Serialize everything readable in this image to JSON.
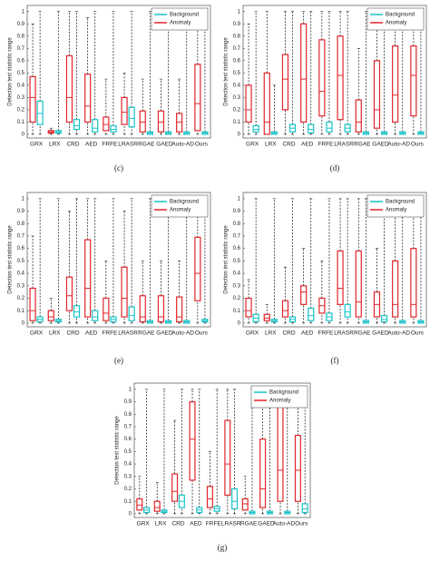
{
  "chart_data": [
    {
      "type": "box",
      "label": "(c)",
      "y_label": "Detection test statistic range",
      "categories": [
        "GRX",
        "LRX",
        "CRD",
        "AED",
        "FRFE",
        "LRASR",
        "RGAE",
        "GAED",
        "Auto-AD",
        "Ours"
      ],
      "ylim": [
        -0.03,
        1.05
      ],
      "yticks": [
        0,
        0.1,
        0.2,
        0.3,
        0.4,
        0.5,
        0.6,
        0.7,
        0.8,
        0.9,
        1
      ],
      "legend": "upper right",
      "series": [
        {
          "name": "Background",
          "color": "#17c3c8",
          "boxes": [
            [
              0,
              0.08,
              0.17,
              0.27,
              1
            ],
            [
              0,
              0.01,
              0.02,
              0.03,
              1
            ],
            [
              0,
              0.04,
              0.07,
              0.12,
              1
            ],
            [
              0,
              0.02,
              0.05,
              0.12,
              1
            ],
            [
              0,
              0.02,
              0.04,
              0.07,
              1
            ],
            [
              0,
              0.06,
              0.13,
              0.22,
              1
            ],
            [
              0,
              0,
              0.01,
              0.02,
              1
            ],
            [
              0,
              0,
              0.01,
              0.02,
              1
            ],
            [
              0,
              0,
              0.01,
              0.02,
              1
            ],
            [
              0,
              0,
              0.01,
              0.02,
              1
            ]
          ]
        },
        {
          "name": "Anomaly",
          "color": "#e0262b",
          "boxes": [
            [
              0,
              0.1,
              0.3,
              0.47,
              0.9
            ],
            [
              0,
              0.01,
              0.02,
              0.03,
              0.05
            ],
            [
              0,
              0.1,
              0.3,
              0.64,
              1
            ],
            [
              0,
              0.1,
              0.23,
              0.49,
              0.95
            ],
            [
              0,
              0.03,
              0.08,
              0.14,
              0.45
            ],
            [
              0,
              0.08,
              0.18,
              0.3,
              0.5
            ],
            [
              0,
              0.02,
              0.1,
              0.19,
              0.45
            ],
            [
              0,
              0.02,
              0.1,
              0.19,
              0.45
            ],
            [
              0,
              0.02,
              0.1,
              0.17,
              0.45
            ],
            [
              0,
              0.03,
              0.25,
              0.57,
              1
            ]
          ]
        }
      ]
    },
    {
      "type": "box",
      "label": "(d)",
      "y_label": "Detection test statistic range",
      "categories": [
        "GRX",
        "LRX",
        "CRD",
        "AED",
        "FRFE",
        "LRASR",
        "RGAE",
        "GAED",
        "Auto-AD",
        "Ours"
      ],
      "ylim": [
        -0.03,
        1.05
      ],
      "yticks": [
        0,
        0.1,
        0.2,
        0.3,
        0.4,
        0.5,
        0.6,
        0.7,
        0.8,
        0.9,
        1
      ],
      "legend": "upper right",
      "series": [
        {
          "name": "Background",
          "color": "#17c3c8",
          "boxes": [
            [
              0,
              0.02,
              0.04,
              0.07,
              1
            ],
            [
              0,
              0,
              0.01,
              0.02,
              0.4
            ],
            [
              0,
              0.02,
              0.05,
              0.08,
              1
            ],
            [
              0,
              0.01,
              0.04,
              0.08,
              1
            ],
            [
              0,
              0.02,
              0.05,
              0.1,
              1
            ],
            [
              0,
              0.02,
              0.05,
              0.08,
              1
            ],
            [
              0,
              0,
              0.01,
              0.02,
              1
            ],
            [
              0,
              0,
              0.01,
              0.02,
              1
            ],
            [
              0,
              0,
              0.01,
              0.02,
              1
            ],
            [
              0,
              0,
              0.01,
              0.02,
              1
            ]
          ]
        },
        {
          "name": "Anomaly",
          "color": "#e0262b",
          "boxes": [
            [
              0,
              0.1,
              0.2,
              0.4,
              0.9
            ],
            [
              0,
              0,
              0.1,
              0.5,
              1
            ],
            [
              0,
              0.2,
              0.45,
              0.65,
              1
            ],
            [
              0,
              0.1,
              0.45,
              0.9,
              1
            ],
            [
              0,
              0.15,
              0.35,
              0.77,
              1
            ],
            [
              0,
              0.12,
              0.48,
              0.8,
              1
            ],
            [
              0,
              0.02,
              0.1,
              0.28,
              0.7
            ],
            [
              0,
              0.05,
              0.2,
              0.6,
              1
            ],
            [
              0,
              0.1,
              0.32,
              0.72,
              1
            ],
            [
              0,
              0.15,
              0.48,
              0.72,
              1
            ]
          ]
        }
      ]
    },
    {
      "type": "box",
      "label": "(e)",
      "y_label": "Detection test statistic range",
      "categories": [
        "GRX",
        "LRX",
        "CRD",
        "AED",
        "FRFE",
        "LRASR",
        "RGAE",
        "GAED",
        "Auto-AD",
        "Ours"
      ],
      "ylim": [
        -0.03,
        1.05
      ],
      "yticks": [
        0,
        0.1,
        0.2,
        0.3,
        0.4,
        0.5,
        0.6,
        0.7,
        0.8,
        0.9,
        1
      ],
      "legend": "upper right",
      "series": [
        {
          "name": "Background",
          "color": "#17c3c8",
          "boxes": [
            [
              0,
              0.01,
              0.03,
              0.05,
              1
            ],
            [
              0,
              0.01,
              0.02,
              0.03,
              1
            ],
            [
              0,
              0.05,
              0.09,
              0.14,
              1
            ],
            [
              0,
              0.02,
              0.05,
              0.1,
              1
            ],
            [
              0,
              0.01,
              0.03,
              0.05,
              1
            ],
            [
              0,
              0.02,
              0.06,
              0.13,
              1
            ],
            [
              0,
              0,
              0.01,
              0.02,
              1
            ],
            [
              0,
              0,
              0.01,
              0.02,
              1
            ],
            [
              0,
              0,
              0.01,
              0.02,
              1
            ],
            [
              0,
              0.01,
              0.02,
              0.03,
              1
            ]
          ]
        },
        {
          "name": "Anomaly",
          "color": "#e0262b",
          "boxes": [
            [
              0,
              0.02,
              0.1,
              0.28,
              0.7
            ],
            [
              0,
              0.02,
              0.05,
              0.1,
              0.2
            ],
            [
              0,
              0.1,
              0.22,
              0.37,
              0.9
            ],
            [
              0,
              0.05,
              0.28,
              0.67,
              1
            ],
            [
              0,
              0.02,
              0.08,
              0.2,
              0.5
            ],
            [
              0,
              0.05,
              0.2,
              0.45,
              0.9
            ],
            [
              0,
              0.01,
              0.05,
              0.22,
              0.5
            ],
            [
              0,
              0.01,
              0.05,
              0.22,
              0.5
            ],
            [
              0,
              0.01,
              0.05,
              0.21,
              0.5
            ],
            [
              0,
              0.18,
              0.4,
              0.69,
              1
            ]
          ]
        }
      ]
    },
    {
      "type": "box",
      "label": "(f)",
      "y_label": "Detection test statistic range",
      "categories": [
        "GRX",
        "LRX",
        "CRD",
        "AED",
        "FRFE",
        "LRASR",
        "RGAE",
        "GAED",
        "Auto-AD",
        "Ours"
      ],
      "ylim": [
        -0.03,
        1.05
      ],
      "yticks": [
        0,
        0.1,
        0.2,
        0.3,
        0.4,
        0.5,
        0.6,
        0.7,
        0.8,
        0.9,
        1
      ],
      "legend": "upper right",
      "series": [
        {
          "name": "Background",
          "color": "#17c3c8",
          "boxes": [
            [
              0,
              0.01,
              0.04,
              0.07,
              1
            ],
            [
              0,
              0.01,
              0.02,
              0.03,
              1
            ],
            [
              0,
              0.01,
              0.03,
              0.05,
              1
            ],
            [
              0,
              0.02,
              0.06,
              0.12,
              1
            ],
            [
              0,
              0.02,
              0.05,
              0.08,
              1
            ],
            [
              0,
              0.05,
              0.09,
              0.15,
              1
            ],
            [
              0,
              0,
              0.01,
              0.02,
              1
            ],
            [
              0,
              0.01,
              0.03,
              0.06,
              1
            ],
            [
              0,
              0,
              0.01,
              0.02,
              1
            ],
            [
              0,
              0,
              0.01,
              0.02,
              1
            ]
          ]
        },
        {
          "name": "Anomaly",
          "color": "#e0262b",
          "boxes": [
            [
              0,
              0.05,
              0.1,
              0.2,
              0.35
            ],
            [
              0,
              0.02,
              0.04,
              0.07,
              0.15
            ],
            [
              0,
              0.05,
              0.1,
              0.18,
              0.45
            ],
            [
              0,
              0.15,
              0.25,
              0.3,
              0.6
            ],
            [
              0,
              0.08,
              0.14,
              0.2,
              0.5
            ],
            [
              0,
              0.15,
              0.28,
              0.58,
              1
            ],
            [
              0,
              0.05,
              0.17,
              0.58,
              1
            ],
            [
              0,
              0.05,
              0.15,
              0.25,
              0.6
            ],
            [
              0,
              0.05,
              0.15,
              0.5,
              1
            ],
            [
              0,
              0.05,
              0.15,
              0.6,
              1
            ]
          ]
        }
      ]
    },
    {
      "type": "box",
      "label": "(g)",
      "y_label": "Detection test statistic range",
      "categories": [
        "GRX",
        "LRX",
        "CRD",
        "AED",
        "FRFE",
        "LRASR",
        "RGAE",
        "GAED",
        "Auto-AD",
        "Ours"
      ],
      "ylim": [
        -0.03,
        1.05
      ],
      "yticks": [
        0,
        0.1,
        0.2,
        0.3,
        0.4,
        0.5,
        0.6,
        0.7,
        0.8,
        0.9,
        1
      ],
      "legend": "upper right",
      "series": [
        {
          "name": "Background",
          "color": "#17c3c8",
          "boxes": [
            [
              0,
              0.01,
              0.03,
              0.05,
              1
            ],
            [
              0,
              0.01,
              0.02,
              0.03,
              1
            ],
            [
              0,
              0.05,
              0.1,
              0.15,
              1
            ],
            [
              0,
              0.01,
              0.03,
              0.05,
              1
            ],
            [
              0,
              0.02,
              0.04,
              0.06,
              1
            ],
            [
              0,
              0.04,
              0.1,
              0.2,
              1
            ],
            [
              0,
              0,
              0.01,
              0.02,
              1
            ],
            [
              0,
              0,
              0.01,
              0.02,
              1
            ],
            [
              0,
              0,
              0.01,
              0.02,
              1
            ],
            [
              0,
              0.01,
              0.04,
              0.08,
              1
            ]
          ]
        },
        {
          "name": "Anomaly",
          "color": "#e0262b",
          "boxes": [
            [
              0,
              0.03,
              0.07,
              0.12,
              0.3
            ],
            [
              0,
              0.02,
              0.05,
              0.1,
              0.25
            ],
            [
              0,
              0.1,
              0.18,
              0.32,
              0.75
            ],
            [
              0,
              0.27,
              0.6,
              0.9,
              1
            ],
            [
              0,
              0.05,
              0.12,
              0.22,
              0.5
            ],
            [
              0,
              0.15,
              0.4,
              0.75,
              1
            ],
            [
              0,
              0.03,
              0.08,
              0.12,
              0.3
            ],
            [
              0,
              0.05,
              0.2,
              0.6,
              1
            ],
            [
              0,
              0.1,
              0.35,
              0.88,
              1
            ],
            [
              0,
              0.1,
              0.35,
              0.63,
              1
            ]
          ]
        }
      ]
    }
  ]
}
